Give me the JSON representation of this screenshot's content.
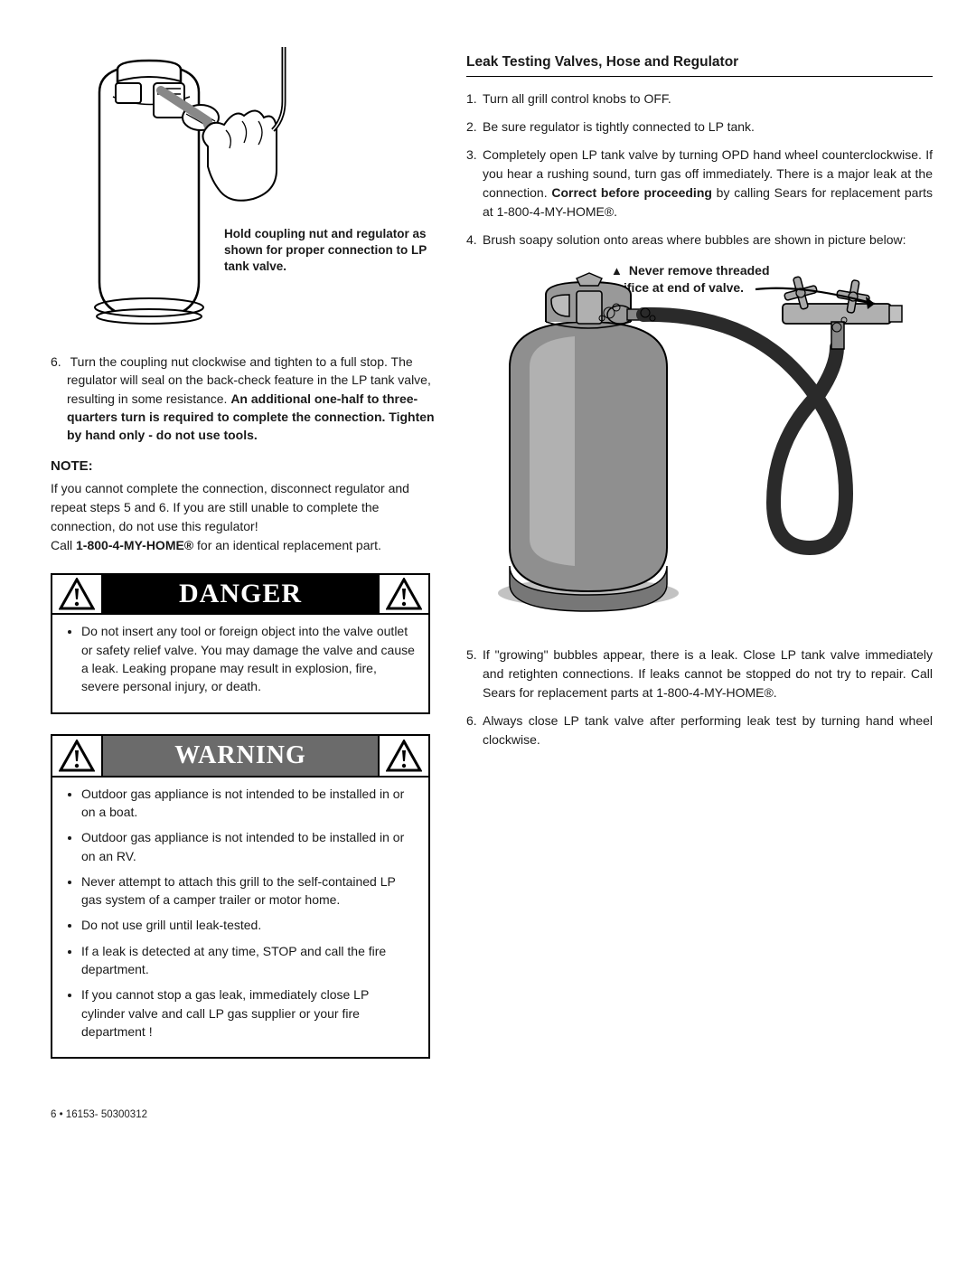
{
  "fig1": {
    "caption": "Hold coupling nut and regulator as shown for proper connection to LP tank valve.",
    "tank_fill": "#ffffff",
    "line_color": "#000000"
  },
  "left": {
    "step6_num": "6.",
    "step6_a": "Turn the coupling nut clockwise and tighten to a full stop. The regulator will seal on the back-check feature in the LP tank valve, resulting in some resistance. ",
    "step6_b": "An additional one-half to three-quarters turn is required to complete the connection. Tighten by hand only - do not use tools.",
    "note_hd": "NOTE:",
    "note_p1": "If you cannot complete the connection, disconnect regulator and repeat steps 5 and 6. If you are still unable to complete the connection, do not use this regulator!",
    "note_p2a": "Call ",
    "note_p2b": "1-800-4-MY-HOME®",
    "note_p2c": " for an identical replacement part."
  },
  "danger": {
    "title": "DANGER",
    "body": "Do not insert any tool or foreign object into the valve outlet or safety relief valve. You may damage the valve and cause a leak. Leaking propane may result in explosion, fire, severe personal injury, or death.",
    "header_bg": "#000000",
    "header_fg": "#ffffff"
  },
  "warning": {
    "title": "WARNING",
    "header_bg": "#6b6b6b",
    "header_fg": "#ffffff",
    "items": [
      "Outdoor gas appliance is not intended to be installed in or on a boat.",
      "Outdoor gas appliance is not intended to be installed in or on an RV.",
      "Never attempt to attach this grill to the self-contained LP gas system of a camper trailer or motor home.",
      "Do not use grill until leak-tested.",
      "If a leak is detected at any time, STOP and call the fire department.",
      "If you cannot stop a gas leak, immediately close LP cylinder valve and call LP gas supplier or your fire department !"
    ]
  },
  "right": {
    "heading": "Leak Testing Valves, Hose and Regulator",
    "step1": {
      "n": "1.",
      "t": "Turn all grill control knobs to OFF."
    },
    "step2": {
      "n": "2.",
      "t": "Be sure regulator is tightly connected to LP tank."
    },
    "step3": {
      "n": "3.",
      "t_a": "Completely open LP tank valve by turning OPD hand wheel counterclockwise. If you hear a rushing sound, turn gas off immediately. There is a major leak at the connection. ",
      "t_b": "Correct before proceeding",
      "t_c": " by calling Sears for replacement parts at 1-800-4-MY-HOME®."
    },
    "step4": {
      "n": "4.",
      "t": "Brush soapy solution onto areas where bubbles are shown in picture below:"
    },
    "fig2_caption_tri": "▲",
    "fig2_caption": "Never remove threaded orifice at end of valve.",
    "step5": {
      "n": "5.",
      "t": "If \"growing\" bubbles appear, there is a leak. Close LP tank valve immediately and retighten connections. If leaks cannot be stopped do not try to repair. Call Sears for replacement parts at 1-800-4-MY-HOME®."
    },
    "step6": {
      "n": "6.",
      "t": "Always close LP tank valve after performing leak test by turning hand wheel clockwise."
    }
  },
  "fig2": {
    "tank_body_fill": "#8f8f8f",
    "tank_outline": "#000000",
    "tank_light": "#c8c8c8",
    "hose_fill": "#2a2a2a",
    "valve_fill": "#b0b0b0"
  },
  "footer": "6 • 16153- 50300312"
}
